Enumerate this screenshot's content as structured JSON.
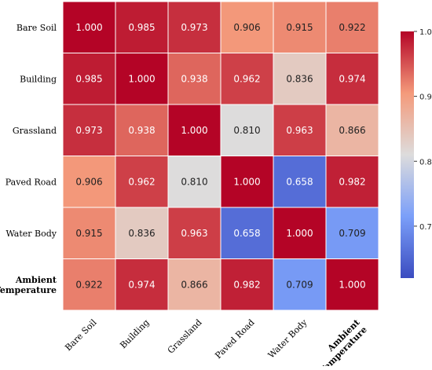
{
  "chart_data": {
    "type": "heatmap",
    "title": "",
    "xlabel": "",
    "ylabel": "",
    "rows": [
      "Bare Soil",
      "Building",
      "Grassland",
      "Paved Road",
      "Water Body",
      "Ambient Temperature"
    ],
    "cols": [
      "Bare Soil",
      "Building",
      "Grassland",
      "Paved Road",
      "Water Body",
      "Ambient Temperature"
    ],
    "bold_labels": [
      "Ambient Temperature"
    ],
    "values": [
      [
        "1.000",
        "0.985",
        "0.973",
        "0.906",
        "0.915",
        "0.922"
      ],
      [
        "0.985",
        "1.000",
        "0.938",
        "0.962",
        "0.836",
        "0.974"
      ],
      [
        "0.973",
        "0.938",
        "1.000",
        "0.810",
        "0.963",
        "0.866"
      ],
      [
        "0.906",
        "0.962",
        "0.810",
        "1.000",
        "0.658",
        "0.982"
      ],
      [
        "0.915",
        "0.836",
        "0.963",
        "0.658",
        "1.000",
        "0.709"
      ],
      [
        "0.922",
        "0.974",
        "0.866",
        "0.982",
        "0.709",
        "1.000"
      ]
    ],
    "colorbar": {
      "ticks": [
        "1.0",
        "0.9",
        "0.8",
        "0.7"
      ],
      "ticks_lower": [
        "0.9",
        "0.8",
        "0.7"
      ],
      "tick_values": [
        1.0,
        0.9,
        0.8,
        0.7
      ],
      "range": [
        0.62,
        1.0
      ],
      "colormap": "coolwarm"
    }
  }
}
